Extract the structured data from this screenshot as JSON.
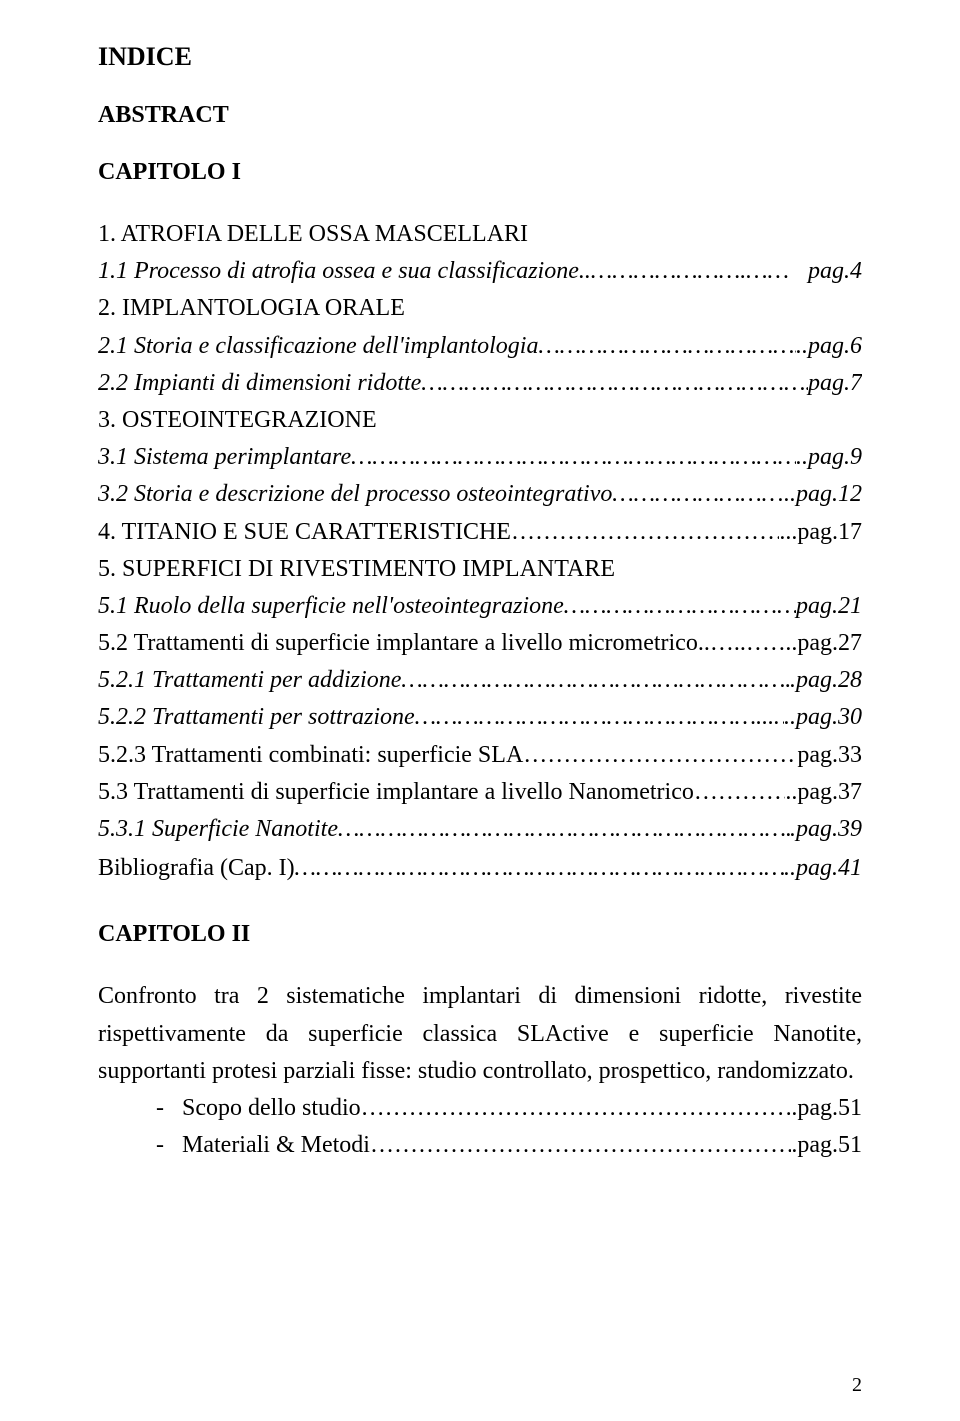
{
  "title": "INDICE",
  "abstract_label": "ABSTRACT",
  "chapter1_label": "CAPITOLO I",
  "toc": [
    {
      "text": "1. ATROFIA DELLE OSSA MASCELLARI",
      "page": "",
      "italic": false,
      "fill": ""
    },
    {
      "text": "1.1 Processo di atrofia ossea e sua classificazione..",
      "page": "pag.4",
      "italic": true,
      "fill": "………………….……"
    },
    {
      "text": "2. IMPLANTOLOGIA ORALE",
      "page": "",
      "italic": false,
      "fill": ""
    },
    {
      "text": "2.1 Storia e classificazione dell'implantologia",
      "page": "..pag.6",
      "italic": true,
      "fill": "……………………………………"
    },
    {
      "text": "2.2 Impianti di dimensioni ridotte",
      "page": "pag.7",
      "italic": true,
      "fill": "…………………………………………………………"
    },
    {
      "text": "3. OSTEOINTEGRAZIONE",
      "page": "",
      "italic": false,
      "fill": ""
    },
    {
      "text": "3.1 Sistema perimplantare",
      "page": "..pag.9",
      "italic": true,
      "fill": "………………………………………………………………"
    },
    {
      "text": "3.2 Storia e descrizione del processo osteointegrativo",
      "page": "...pag.12",
      "italic": true,
      "fill": "………………………"
    },
    {
      "text": "4. TITANIO E SUE CARATTERISTICHE",
      "page": "...pag.17",
      "italic": false,
      "fill": "………………………………"
    },
    {
      "text": "5. SUPERFICI DI RIVESTIMENTO IMPLANTARE",
      "page": "",
      "italic": false,
      "fill": ""
    },
    {
      "text": "5.1 Ruolo della superficie nell'osteointegrazione",
      "page": "pag.21",
      "italic": true,
      "fill": "…………………………………"
    },
    {
      "text": "5.2 Trattamenti di superficie implantare a livello micrometrico",
      "page": "..pag.27",
      "italic": false,
      "fill": "..…..……"
    },
    {
      "text": "5.2.1 Trattamenti per addizione",
      "page": ".pag.28",
      "italic": true,
      "fill": "…………………………………………………"
    },
    {
      "text": "5.2.2 Trattamenti per sottrazione",
      "page": "..pag.30",
      "italic": true,
      "fill": "…………………………………………...…"
    },
    {
      "text": "5.2.3 Trattamenti combinati: superficie SLA",
      "page": "pag.33",
      "italic": false,
      "fill": "…………………………………"
    },
    {
      "text": "5.3 Trattamenti di superficie implantare a livello Nanometrico",
      "page": "..pag.37",
      "italic": false,
      "fill": "…………"
    },
    {
      "text": "5.3.1 Superficie Nanotite",
      "page": ".pag.39",
      "italic": true,
      "fill": "…………………………………………………………..…"
    }
  ],
  "biblio": {
    "text": "Bibliografia (Cap. I)",
    "page": "..pag.41",
    "fill": "…………………………………………………………………"
  },
  "chapter2_label": "CAPITOLO II",
  "chapter2_body": "Confronto tra 2 sistematiche implantari di dimensioni ridotte, rivestite rispettivamente da superficie classica SLActive e superficie Nanotite, supportanti protesi parziali fisse: studio controllato, prospettico, randomizzato.",
  "list": [
    {
      "text": "Scopo dello studio",
      "page": ".pag.51",
      "fill": "………………………………………………..……"
    },
    {
      "text": "Materiali & Metodi",
      "page": ".pag.51",
      "fill": "………………………………………………………"
    }
  ],
  "page_number": "2"
}
